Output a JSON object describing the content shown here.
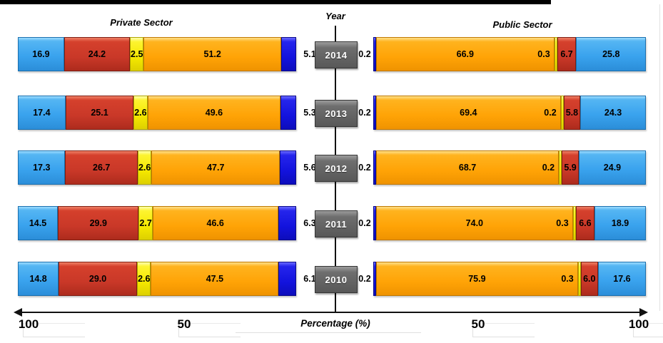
{
  "chart_data": {
    "type": "bar",
    "variant": "bidirectional-stacked-tornado",
    "left_title": "Private Sector",
    "right_title": "Public Sector",
    "center_label": "Year",
    "xlabel": "Percentage (%)",
    "grid": false,
    "legend": "none",
    "years": [
      "2014",
      "2013",
      "2012",
      "2011",
      "2010"
    ],
    "segment_order_private": [
      "light_blue",
      "red",
      "yellow",
      "orange",
      "dark_blue"
    ],
    "segment_order_public": [
      "dark_blue",
      "orange",
      "yellow",
      "red",
      "light_blue"
    ],
    "private_values": [
      [
        "16.9",
        "24.2",
        "2.5",
        "51.2",
        "5.1"
      ],
      [
        "17.4",
        "25.1",
        "2.6",
        "49.6",
        "5.3"
      ],
      [
        "17.3",
        "26.7",
        "2.6",
        "47.7",
        "5.6"
      ],
      [
        "14.5",
        "29.9",
        "2.7",
        "46.6",
        "6.3"
      ],
      [
        "14.8",
        "29.0",
        "2.6",
        "47.5",
        "6.1"
      ]
    ],
    "public_values": [
      [
        "0.2",
        "66.9",
        "0.3",
        "6.7",
        "25.8"
      ],
      [
        "0.2",
        "69.4",
        "0.2",
        "5.8",
        "24.3"
      ],
      [
        "0.2",
        "68.7",
        "0.2",
        "5.9",
        "24.9"
      ],
      [
        "0.2",
        "74.0",
        "0.3",
        "6.6",
        "18.9"
      ],
      [
        "0.2",
        "75.9",
        "0.3",
        "6.0",
        "17.6"
      ]
    ],
    "axis": {
      "left_ticks": [
        "100",
        "50"
      ],
      "right_ticks": [
        "50",
        "100"
      ],
      "xlim_each_side": [
        0,
        100
      ]
    },
    "colors": {
      "light_blue": "#3AA3EE",
      "red": "#C93828",
      "yellow": "#F5E800",
      "orange": "#FFA306",
      "dark_blue": "#1313DD",
      "year_box": "#595959",
      "axis": "#111111"
    }
  }
}
